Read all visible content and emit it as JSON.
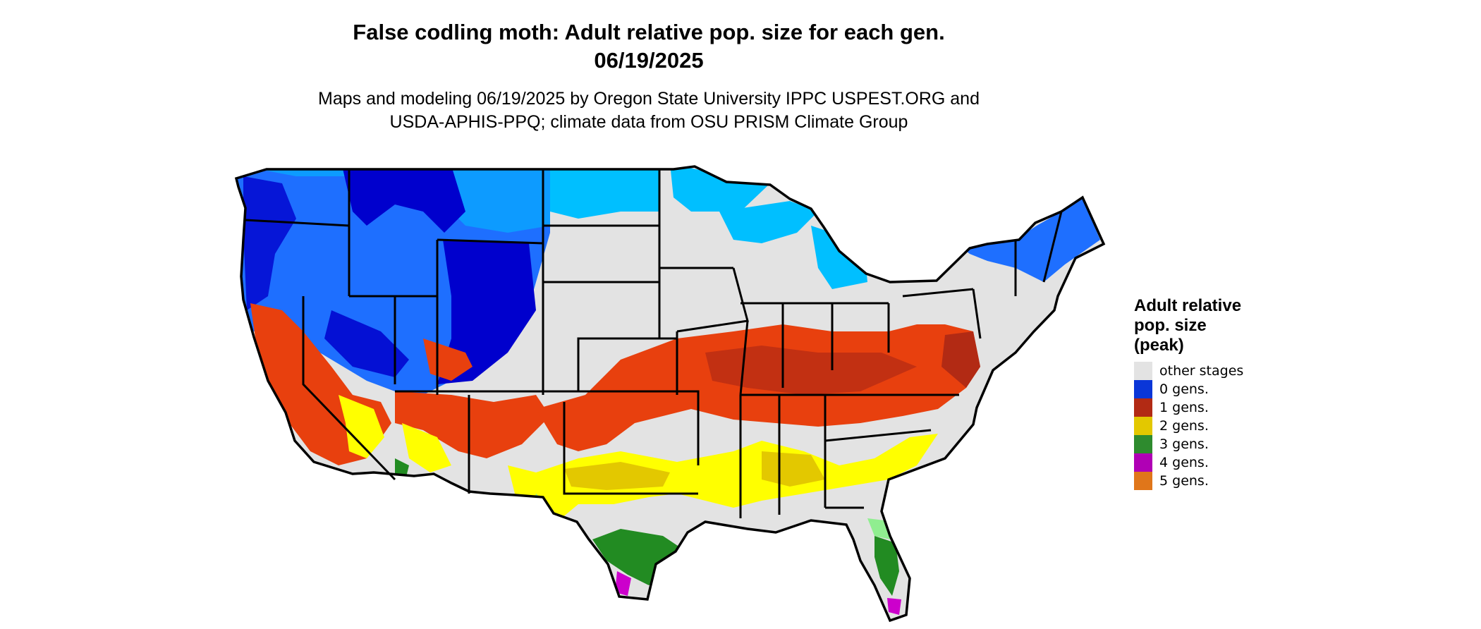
{
  "header": {
    "title_line1": "False codling moth: Adult relative pop. size for each gen.",
    "title_line2": "06/19/2025",
    "subtitle_line1": "Maps and modeling 06/19/2025 by Oregon State University IPPC USPEST.ORG and",
    "subtitle_line2": "USDA-APHIS-PPQ; climate data from OSU PRISM Climate Group"
  },
  "legend": {
    "title_line1": "Adult relative",
    "title_line2": "pop. size",
    "title_line3": "(peak)",
    "items": [
      {
        "label": "other stages",
        "color": "#e3e3e3"
      },
      {
        "label": "0 gens.",
        "color": "#0a36d8"
      },
      {
        "label": "1 gens.",
        "color": "#b22a14"
      },
      {
        "label": "2 gens.",
        "color": "#e3c800"
      },
      {
        "label": "3 gens.",
        "color": "#2e8b2e"
      },
      {
        "label": "4 gens.",
        "color": "#b000b5"
      },
      {
        "label": "5 gens.",
        "color": "#e0761a"
      }
    ]
  },
  "map": {
    "colors": {
      "other": "#e3e3e3",
      "gen0_dark": "#0000cd",
      "gen0_mid": "#1e6fff",
      "gen0_light": "#00bfff",
      "gen1_dark": "#b22a14",
      "gen1_bright": "#e8400e",
      "gen2_dark": "#e3c800",
      "gen2_bright": "#ffff00",
      "gen3_dark": "#228b22",
      "gen3_light": "#90ee90",
      "gen4": "#cc00cc",
      "outline": "#000000"
    }
  }
}
